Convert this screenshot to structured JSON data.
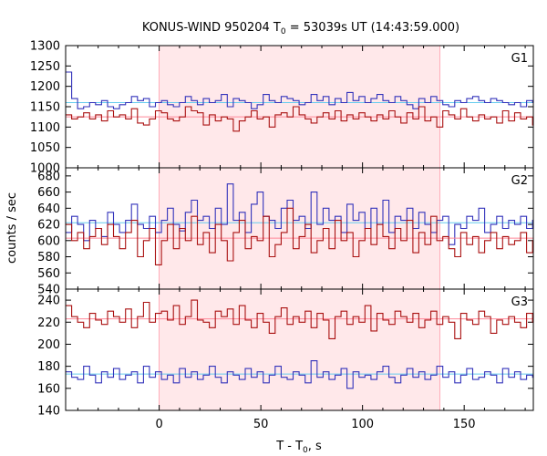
{
  "chart_data": {
    "type": "line",
    "title": "KONUS-WIND 950204 T",
    "title_sub": "0",
    "title_rest": " = 53039s UT (14:43:59.000)",
    "xlabel": "T - T",
    "xlabel_sub": "0",
    "xlabel_rest": ", s",
    "ylabel": "counts / sec",
    "xlim": [
      -46,
      184
    ],
    "x_ticks": [
      "0",
      "50",
      "100",
      "150"
    ],
    "x_tick_values": [
      0,
      50,
      100,
      150
    ],
    "shaded_interval": [
      0,
      138
    ],
    "shade_color": "#ffe8ea",
    "step": 2.944,
    "colors": {
      "blue": "#3333bb",
      "red": "#aa1111",
      "blue_bg": "#66ccee",
      "red_bg": "#ff8899"
    },
    "panels": [
      {
        "label": "G1",
        "ylim": [
          1000,
          1300
        ],
        "y_ticks": [
          "1000",
          "1050",
          "1100",
          "1150",
          "1200",
          "1250",
          "1300"
        ],
        "y_tick_values": [
          1000,
          1050,
          1100,
          1150,
          1200,
          1250,
          1300
        ],
        "series": [
          {
            "color_key": "blue",
            "background": 1160,
            "values": [
              1235,
              1170,
              1145,
              1150,
              1160,
              1155,
              1165,
              1150,
              1145,
              1155,
              1160,
              1175,
              1165,
              1170,
              1150,
              1160,
              1165,
              1155,
              1150,
              1160,
              1175,
              1165,
              1155,
              1170,
              1160,
              1165,
              1180,
              1150,
              1170,
              1165,
              1160,
              1145,
              1155,
              1180,
              1165,
              1160,
              1175,
              1170,
              1165,
              1155,
              1160,
              1180,
              1165,
              1175,
              1155,
              1170,
              1160,
              1185,
              1165,
              1175,
              1160,
              1170,
              1180,
              1165,
              1160,
              1175,
              1165,
              1155,
              1145,
              1170,
              1160,
              1175,
              1165,
              1155,
              1150,
              1165,
              1160,
              1170,
              1175,
              1165,
              1160,
              1170,
              1165,
              1160,
              1155,
              1160,
              1150,
              1165,
              1160
            ]
          },
          {
            "color_key": "red",
            "background": 1125,
            "values": [
              1130,
              1120,
              1125,
              1135,
              1120,
              1130,
              1115,
              1140,
              1125,
              1130,
              1120,
              1145,
              1110,
              1105,
              1120,
              1140,
              1135,
              1120,
              1115,
              1125,
              1150,
              1140,
              1135,
              1105,
              1130,
              1115,
              1125,
              1120,
              1090,
              1115,
              1125,
              1140,
              1120,
              1125,
              1100,
              1130,
              1135,
              1125,
              1150,
              1130,
              1120,
              1110,
              1125,
              1135,
              1120,
              1140,
              1115,
              1130,
              1120,
              1135,
              1125,
              1115,
              1130,
              1120,
              1140,
              1125,
              1110,
              1135,
              1120,
              1150,
              1115,
              1125,
              1100,
              1140,
              1130,
              1120,
              1145,
              1125,
              1115,
              1130,
              1120,
              1125,
              1110,
              1140,
              1115,
              1135,
              1120,
              1125,
              1105
            ]
          }
        ]
      },
      {
        "label": "G2",
        "ylim": [
          540,
          690
        ],
        "y_ticks": [
          "540",
          "560",
          "580",
          "600",
          "620",
          "640",
          "660",
          "680"
        ],
        "y_tick_values": [
          540,
          560,
          580,
          600,
          620,
          640,
          660,
          680
        ],
        "series": [
          {
            "color_key": "blue",
            "background": 622,
            "values": [
              610,
              630,
              620,
              600,
              625,
              615,
              605,
              635,
              620,
              610,
              625,
              645,
              620,
              615,
              630,
              610,
              625,
              640,
              620,
              612,
              635,
              650,
              625,
              630,
              615,
              640,
              620,
              670,
              625,
              635,
              610,
              645,
              660,
              630,
              625,
              615,
              640,
              650,
              625,
              630,
              615,
              660,
              620,
              640,
              625,
              630,
              610,
              645,
              625,
              635,
              615,
              640,
              620,
              650,
              610,
              630,
              625,
              640,
              615,
              635,
              620,
              610,
              625,
              630,
              595,
              620,
              615,
              630,
              625,
              640,
              610,
              620,
              630,
              615,
              625,
              620,
              630,
              615,
              625
            ]
          },
          {
            "color_key": "red",
            "background": 603,
            "values": [
              620,
              600,
              610,
              590,
              605,
              615,
              595,
              620,
              605,
              590,
              610,
              625,
              580,
              600,
              615,
              570,
              600,
              620,
              590,
              615,
              600,
              630,
              595,
              610,
              585,
              620,
              600,
              575,
              610,
              625,
              590,
              605,
              600,
              630,
              580,
              595,
              610,
              640,
              590,
              605,
              620,
              585,
              600,
              615,
              590,
              625,
              600,
              610,
              580,
              600,
              615,
              595,
              620,
              605,
              590,
              615,
              600,
              625,
              585,
              610,
              595,
              630,
              600,
              605,
              590,
              580,
              610,
              595,
              605,
              585,
              600,
              610,
              590,
              605,
              595,
              600,
              610,
              585,
              600
            ]
          }
        ]
      },
      {
        "label": "G3",
        "ylim": [
          140,
          250
        ],
        "y_ticks": [
          "140",
          "160",
          "180",
          "200",
          "220",
          "240"
        ],
        "y_tick_values": [
          140,
          160,
          180,
          200,
          220,
          240
        ],
        "series": [
          {
            "color_key": "red",
            "background": 223,
            "values": [
              235,
              225,
              220,
              215,
              228,
              222,
              218,
              230,
              225,
              220,
              232,
              215,
              225,
              238,
              220,
              228,
              230,
              222,
              235,
              218,
              225,
              240,
              222,
              220,
              215,
              230,
              225,
              232,
              218,
              235,
              222,
              215,
              228,
              220,
              210,
              225,
              233,
              218,
              225,
              220,
              230,
              215,
              228,
              222,
              205,
              225,
              230,
              218,
              225,
              220,
              235,
              212,
              228,
              222,
              218,
              230,
              225,
              220,
              228,
              215,
              222,
              230,
              218,
              225,
              220,
              205,
              228,
              222,
              218,
              230,
              225,
              210,
              222,
              218,
              225,
              220,
              215,
              228,
              220
            ]
          },
          {
            "color_key": "blue",
            "background": 173,
            "values": [
              175,
              170,
              168,
              180,
              172,
              165,
              175,
              170,
              178,
              168,
              172,
              175,
              165,
              180,
              170,
              175,
              168,
              172,
              165,
              178,
              170,
              175,
              168,
              172,
              180,
              170,
              165,
              175,
              172,
              168,
              178,
              170,
              175,
              165,
              172,
              180,
              170,
              168,
              175,
              172,
              165,
              185,
              170,
              175,
              168,
              172,
              178,
              160,
              175,
              170,
              172,
              168,
              175,
              180,
              170,
              165,
              172,
              178,
              170,
              175,
              168,
              172,
              180,
              170,
              175,
              165,
              172,
              178,
              168,
              170,
              175,
              172,
              165,
              178,
              170,
              175,
              168,
              172,
              170
            ]
          }
        ]
      }
    ]
  }
}
